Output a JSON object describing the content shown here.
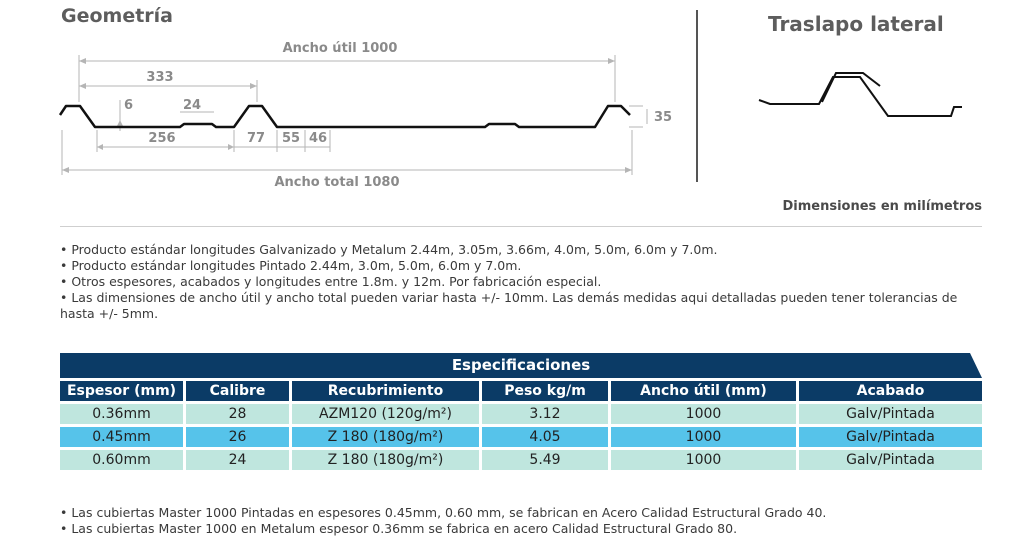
{
  "geometry": {
    "title": "Geometría",
    "dims": {
      "ancho_util": "Ancho útil 1000",
      "pitch": "333",
      "d6": "6",
      "d24": "24",
      "d256": "256",
      "d77": "77",
      "d55": "55",
      "d46": "46",
      "height": "35",
      "ancho_total": "Ancho total 1080"
    }
  },
  "traslapo": {
    "title": "Traslapo lateral"
  },
  "units_note": "Dimensiones en milímetros",
  "notes_top": [
    "• Producto estándar longitudes Galvanizado y Metalum 2.44m, 3.05m, 3.66m, 4.0m, 5.0m, 6.0m y 7.0m.",
    "• Producto estándar longitudes Pintado 2.44m, 3.0m, 5.0m, 6.0m y 7.0m.",
    "• Otros espesores, acabados y longitudes entre 1.8m. y 12m. Por fabricación especial.",
    "• Las dimensiones de ancho útil y ancho total pueden variar hasta +/- 10mm. Las demás medidas aqui detalladas pueden tener tolerancias de hasta +/- 5mm."
  ],
  "spec": {
    "title": "Especificaciones",
    "headers": [
      "Espesor (mm)",
      "Calibre",
      "Recubrimiento",
      "Peso kg/m",
      "Ancho útil (mm)",
      "Acabado"
    ],
    "rows": [
      [
        "0.36mm",
        "28",
        "AZM120 (120g/m²)",
        "3.12",
        "1000",
        "Galv/Pintada"
      ],
      [
        "0.45mm",
        "26",
        "Z 180 (180g/m²)",
        "4.05",
        "1000",
        "Galv/Pintada"
      ],
      [
        "0.60mm",
        "24",
        "Z 180 (180g/m²)",
        "5.49",
        "1000",
        "Galv/Pintada"
      ]
    ]
  },
  "notes_bottom": [
    "• Las cubiertas Master 1000 Pintadas en espesores 0.45mm, 0.60 mm, se fabrican en Acero Calidad Estructural Grado 40.",
    "• Las cubiertas Master 1000 en Metalum espesor 0.36mm se fabrica en acero Calidad Estructural Grado 80."
  ],
  "colors": {
    "navy": "#0b3b66",
    "mint": "#bfe6de",
    "blue": "#56c3ea"
  }
}
